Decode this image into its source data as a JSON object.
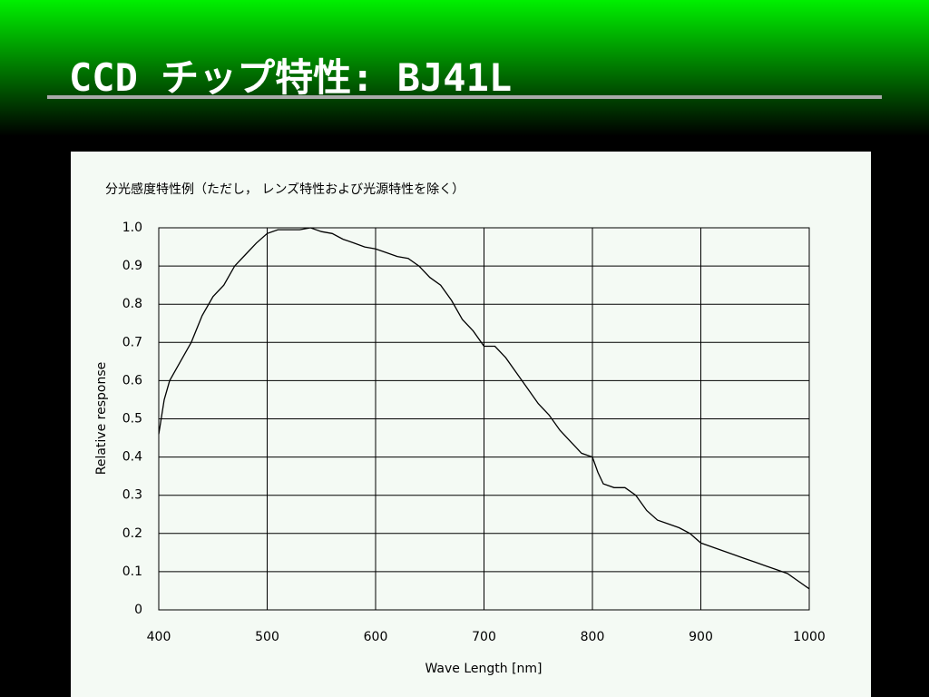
{
  "slide_title": "CCD チップ特性: BJ41L",
  "chart_data": {
    "type": "line",
    "title": "分光感度特性例（ただし， レンズ特性および光源特性を除く）",
    "x_label": "Wave Length [nm]",
    "y_label": "Relative response",
    "x": [
      400,
      405,
      410,
      420,
      430,
      440,
      450,
      460,
      470,
      480,
      490,
      500,
      510,
      520,
      530,
      540,
      550,
      560,
      570,
      580,
      590,
      600,
      610,
      620,
      630,
      640,
      650,
      660,
      670,
      680,
      690,
      700,
      710,
      720,
      730,
      740,
      750,
      760,
      770,
      780,
      790,
      800,
      805,
      810,
      820,
      830,
      840,
      850,
      860,
      870,
      880,
      890,
      900,
      910,
      920,
      930,
      940,
      950,
      960,
      970,
      980,
      990,
      1000
    ],
    "series": [
      {
        "name": "Relative response",
        "color": "#000000",
        "values": [
          0.46,
          0.55,
          0.6,
          0.65,
          0.7,
          0.77,
          0.82,
          0.85,
          0.9,
          0.93,
          0.96,
          0.985,
          0.995,
          0.995,
          0.995,
          1.0,
          0.99,
          0.985,
          0.97,
          0.96,
          0.95,
          0.945,
          0.935,
          0.925,
          0.92,
          0.9,
          0.87,
          0.85,
          0.81,
          0.76,
          0.73,
          0.69,
          0.69,
          0.66,
          0.62,
          0.58,
          0.54,
          0.51,
          0.47,
          0.44,
          0.41,
          0.4,
          0.36,
          0.33,
          0.32,
          0.32,
          0.3,
          0.26,
          0.235,
          0.225,
          0.215,
          0.2,
          0.175,
          0.165,
          0.155,
          0.145,
          0.135,
          0.125,
          0.115,
          0.105,
          0.095,
          0.075,
          0.055
        ]
      }
    ],
    "xlim": [
      400,
      1000
    ],
    "xticks": [
      400,
      500,
      600,
      700,
      800,
      900,
      1000
    ],
    "ylim": [
      0,
      1
    ],
    "yticks": [
      0,
      0.1,
      0.2,
      0.3,
      0.4,
      0.5,
      0.6,
      0.7,
      0.8,
      0.9,
      {
        "value": 1,
        "label": "1.0"
      }
    ],
    "grid": true
  }
}
